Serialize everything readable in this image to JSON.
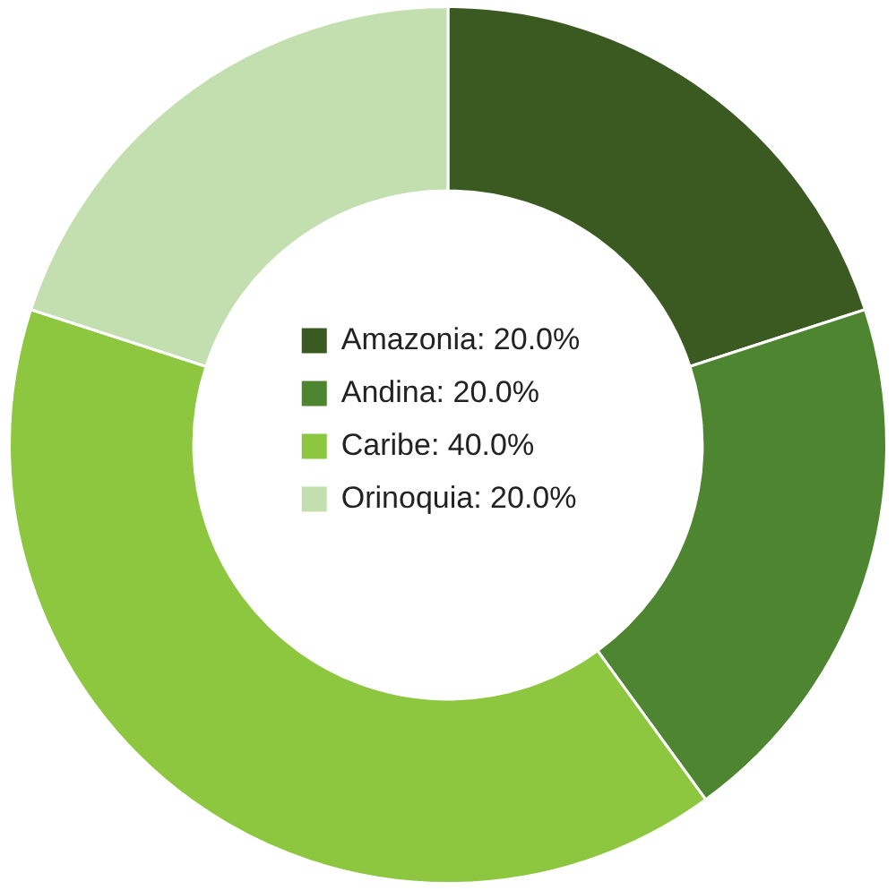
{
  "chart_data": {
    "type": "donut",
    "categories": [
      "Amazonia",
      "Andina",
      "Caribe",
      "Orinoquia"
    ],
    "values": [
      20,
      20,
      40,
      20
    ],
    "value_labels": [
      "20.0%",
      "20.0%",
      "40.0%",
      "20.0%"
    ],
    "colors": [
      "#3b5a22",
      "#4e8530",
      "#8dc63f",
      "#c3dfb0"
    ],
    "legend": "center"
  }
}
